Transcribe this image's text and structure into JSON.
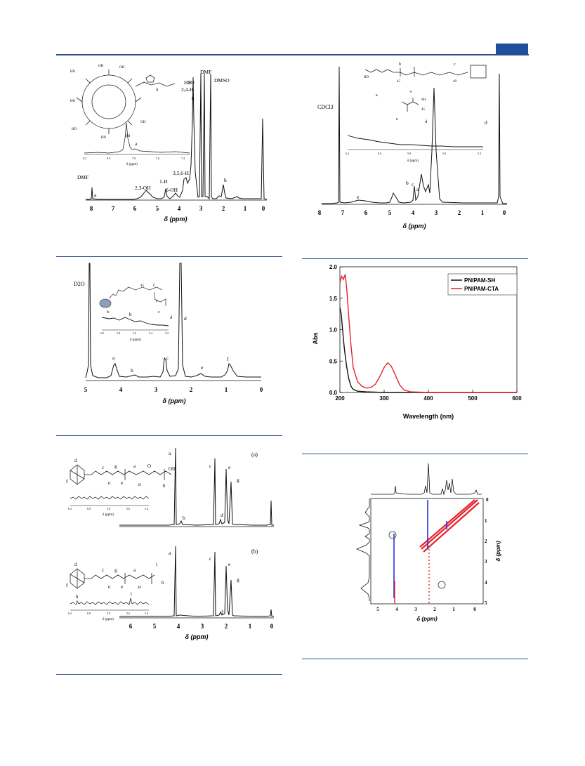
{
  "figures": {
    "fig_top_left": {
      "x_axis_label": "δ (ppm)",
      "ticks": [
        "8",
        "7",
        "6",
        "5",
        "4",
        "3",
        "2",
        "1",
        "0"
      ],
      "peak_labels": [
        "H2O",
        "2,4-H",
        "DMF",
        "DMSO",
        "DMF",
        "a",
        "2,3-OH",
        "1-H",
        "6-OH",
        "3,5,6-H",
        "b"
      ],
      "inset_axis_label": "δ (ppm)",
      "inset_peak": "a",
      "chart_data": {
        "type": "line",
        "x_range": [
          8.5,
          -0.2
        ],
        "peaks_ppm": [
          7.95,
          5.7,
          4.85,
          4.45,
          3.65,
          3.35,
          2.88,
          2.73,
          2.5,
          1.9,
          0.0
        ]
      }
    },
    "fig_top_right": {
      "x_axis_label": "δ (ppm)",
      "ticks": [
        "8",
        "7",
        "6",
        "5",
        "4",
        "3",
        "2",
        "1",
        "0"
      ],
      "solvent": "CDCl3",
      "peak_labels": [
        "e",
        "b",
        "a",
        "c",
        "d"
      ],
      "inset_ticks": [
        "6.2",
        "6.0",
        "5.8",
        "5.6",
        "5.4"
      ],
      "inset_axis_label": "δ (ppm)",
      "struct_labels": [
        "45",
        "40",
        "45",
        "+",
        "SH",
        "d",
        "e",
        "a"
      ],
      "chart_data": {
        "type": "line",
        "x_range": [
          8,
          -0.2
        ],
        "peaks_ppm": [
          7.26,
          6.2,
          4.05,
          3.9,
          2.3,
          1.95,
          1.6,
          1.1,
          0.0
        ]
      }
    },
    "fig_mid_left": {
      "x_axis_label": "δ (ppm)",
      "ticks": [
        "5",
        "4",
        "3",
        "2",
        "1",
        "0"
      ],
      "solvent": "D2O",
      "peak_labels": [
        "a",
        "b",
        "c",
        "d",
        "e",
        "f"
      ],
      "inset_ticks": [
        "6.0",
        "5.8",
        "5.6",
        "5.4",
        "5.2"
      ],
      "inset_axis_label": "δ (ppm)",
      "inset_peak": "b",
      "chart_data": {
        "type": "line",
        "x_range": [
          5,
          0
        ],
        "peaks_ppm": [
          4.79,
          4.2,
          3.75,
          2.7,
          2.25,
          1.85,
          1.05
        ]
      }
    },
    "fig_mid_right": {
      "type": "line",
      "ylabel": "Abs",
      "xlabel": "Wavelength (nm)",
      "x_ticks": [
        "200",
        "300",
        "400",
        "500",
        "600"
      ],
      "y_ticks": [
        "0.0",
        "0.5",
        "1.0",
        "1.5",
        "2.0"
      ],
      "legend": [
        "PNIPAM-SH",
        "PNIPAM-CTA"
      ],
      "colors": {
        "PNIPAM-SH": "#111111",
        "PNIPAM-CTA": "#e8202a"
      },
      "chart_data": {
        "type": "line",
        "xlim": [
          200,
          600
        ],
        "ylim": [
          0,
          2.0
        ],
        "series": [
          {
            "name": "PNIPAM-SH",
            "x": [
              200,
              203,
              206,
              210,
              215,
              220,
              225,
              230,
              240,
              260,
              300,
              600
            ],
            "y": [
              1.35,
              1.25,
              1.0,
              0.7,
              0.42,
              0.22,
              0.1,
              0.05,
              0.02,
              0.01,
              0.0,
              0.0
            ]
          },
          {
            "name": "PNIPAM-CTA",
            "x": [
              200,
              204,
              208,
              212,
              216,
              220,
              225,
              230,
              240,
              250,
              260,
              270,
              280,
              290,
              300,
              308,
              316,
              325,
              335,
              345,
              360,
              400,
              600
            ],
            "y": [
              1.75,
              1.85,
              1.8,
              1.88,
              1.6,
              1.2,
              0.75,
              0.4,
              0.17,
              0.1,
              0.07,
              0.08,
              0.13,
              0.25,
              0.4,
              0.47,
              0.42,
              0.28,
              0.12,
              0.04,
              0.01,
              0.0,
              0.0
            ]
          }
        ]
      }
    },
    "fig_bottom_left": {
      "x_axis_label": "δ (ppm)",
      "ticks": [
        "6",
        "5",
        "4",
        "3",
        "2",
        "1",
        "0"
      ],
      "panel_a": "(a)",
      "panel_b": "(b)",
      "labels_a": [
        "a",
        "b",
        "c",
        "d",
        "e",
        "g"
      ],
      "labels_b": [
        "a",
        "c",
        "d",
        "e",
        "g"
      ],
      "inset_ticks": [
        "6.2",
        "6.0",
        "5.8",
        "5.6",
        "5.4"
      ],
      "inset_axis_label": "δ (ppm)",
      "inset_b_peaks": [
        "h",
        "i"
      ],
      "struct_a": [
        "d",
        "c",
        "g",
        "a",
        "O",
        "OH",
        "f",
        "e",
        "e",
        "39",
        "b"
      ],
      "struct_b": [
        "d",
        "c",
        "g",
        "a",
        "i",
        "f",
        "e",
        "e",
        "40",
        "h"
      ],
      "chart_data": {
        "type": "line",
        "x_range": [
          6.3,
          -0.1
        ],
        "peaks_ppm": [
          4.05,
          3.65,
          2.3,
          2.05,
          1.65,
          1.4,
          0.0
        ]
      }
    },
    "fig_bottom_right": {
      "x_axis_label": "δ (ppm)",
      "y_axis_label": "δ (ppm)",
      "x_ticks": [
        "5",
        "4",
        "3",
        "2",
        "1",
        "0"
      ],
      "y_ticks": [
        "0",
        "1",
        "2",
        "3",
        "4",
        "5"
      ],
      "chart_data": {
        "type": "heatmap",
        "x_range": [
          5.5,
          -0.2
        ],
        "y_range": [
          -0.2,
          5.1
        ],
        "cross_peaks": [
          [
            4.05,
            1.6
          ],
          [
            1.6,
            4.05
          ]
        ]
      }
    }
  }
}
